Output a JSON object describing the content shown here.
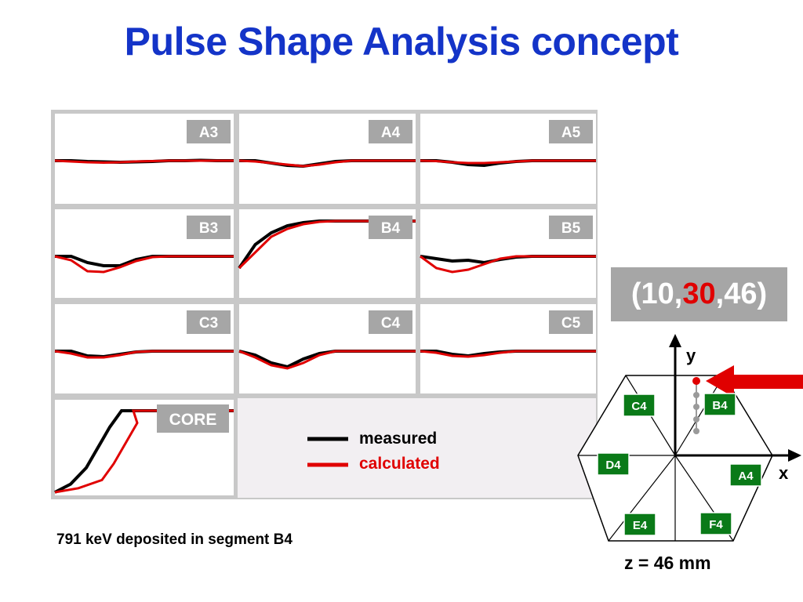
{
  "title": "Pulse Shape Analysis concept",
  "panels": [
    {
      "label": "A3",
      "measured": [
        0,
        0,
        -0.1,
        -0.15,
        -0.2,
        -0.15,
        -0.1,
        0,
        0,
        0.05,
        0,
        0
      ],
      "calculated": [
        0,
        -0.1,
        -0.2,
        -0.25,
        -0.2,
        -0.1,
        -0.05,
        0,
        0,
        0,
        0,
        0
      ]
    },
    {
      "label": "A4",
      "measured": [
        0,
        0,
        -0.3,
        -0.6,
        -0.7,
        -0.4,
        -0.1,
        0,
        0,
        0,
        0,
        0
      ],
      "calculated": [
        0,
        -0.1,
        -0.3,
        -0.5,
        -0.7,
        -0.5,
        -0.2,
        0,
        0,
        0,
        0,
        0
      ]
    },
    {
      "label": "A5",
      "measured": [
        0,
        0,
        -0.2,
        -0.5,
        -0.6,
        -0.3,
        -0.1,
        0,
        0,
        0,
        0,
        0
      ],
      "calculated": [
        0,
        -0.05,
        -0.2,
        -0.3,
        -0.3,
        -0.2,
        -0.1,
        0,
        0,
        0,
        0,
        0
      ]
    },
    {
      "label": "B3",
      "measured": [
        0,
        0,
        -0.8,
        -1.2,
        -1.2,
        -0.4,
        0,
        0,
        0,
        0,
        0,
        0
      ],
      "calculated": [
        0,
        -0.5,
        -1.9,
        -2.0,
        -1.4,
        -0.6,
        -0.1,
        0,
        0,
        0,
        0,
        0
      ]
    },
    {
      "label": "B4",
      "measured": [
        -6,
        -3,
        -1.5,
        -0.6,
        -0.2,
        0,
        0,
        0,
        0,
        0,
        0,
        0
      ],
      "calculated": [
        -6,
        -4,
        -2,
        -1,
        -0.4,
        -0.1,
        0,
        0,
        0,
        0,
        0,
        0
      ]
    },
    {
      "label": "B5",
      "measured": [
        0,
        -0.3,
        -0.6,
        -0.5,
        -0.8,
        -0.4,
        -0.1,
        0,
        0,
        0,
        0,
        0
      ],
      "calculated": [
        0,
        -1.5,
        -2.0,
        -1.7,
        -1.0,
        -0.3,
        0,
        0,
        0,
        0,
        0,
        0
      ]
    },
    {
      "label": "C3",
      "measured": [
        0,
        0,
        -0.6,
        -0.7,
        -0.4,
        -0.1,
        0,
        0,
        0,
        0,
        0,
        0
      ],
      "calculated": [
        0,
        -0.3,
        -0.8,
        -0.8,
        -0.5,
        -0.1,
        0,
        0,
        0,
        0,
        0,
        0
      ]
    },
    {
      "label": "C4",
      "measured": [
        0,
        -0.5,
        -1.5,
        -2.0,
        -1.0,
        -0.3,
        0,
        0,
        0,
        0,
        0,
        0
      ],
      "calculated": [
        0,
        -0.8,
        -1.8,
        -2.2,
        -1.5,
        -0.5,
        0,
        0,
        0,
        0,
        0,
        0
      ]
    },
    {
      "label": "C5",
      "measured": [
        0,
        0,
        -0.4,
        -0.6,
        -0.3,
        -0.1,
        0,
        0,
        0,
        0,
        0,
        0
      ],
      "calculated": [
        0,
        -0.2,
        -0.6,
        -0.7,
        -0.5,
        -0.2,
        0,
        0,
        0,
        0,
        0,
        0
      ]
    }
  ],
  "core": {
    "label": "CORE",
    "measured": [
      0,
      0.1,
      0.3,
      0.55,
      0.8,
      1,
      1,
      1,
      1,
      1
    ],
    "calculated": [
      0,
      0.05,
      0.15,
      0.35,
      0.6,
      0.85,
      1,
      1,
      1,
      1
    ]
  },
  "legend": {
    "measured": "measured",
    "calculated": "calculated",
    "measured_color": "#000000",
    "calculated_color": "#e00000"
  },
  "coord": {
    "open": "(10,",
    "mid": "30",
    "close": ",46)"
  },
  "caption": "791 keV deposited in segment B4",
  "detector": {
    "y_axis": "y",
    "x_axis": "x",
    "segments": [
      "C4",
      "B4",
      "D4",
      "A4",
      "E4",
      "F4"
    ],
    "z_label": "z = 46 mm"
  }
}
